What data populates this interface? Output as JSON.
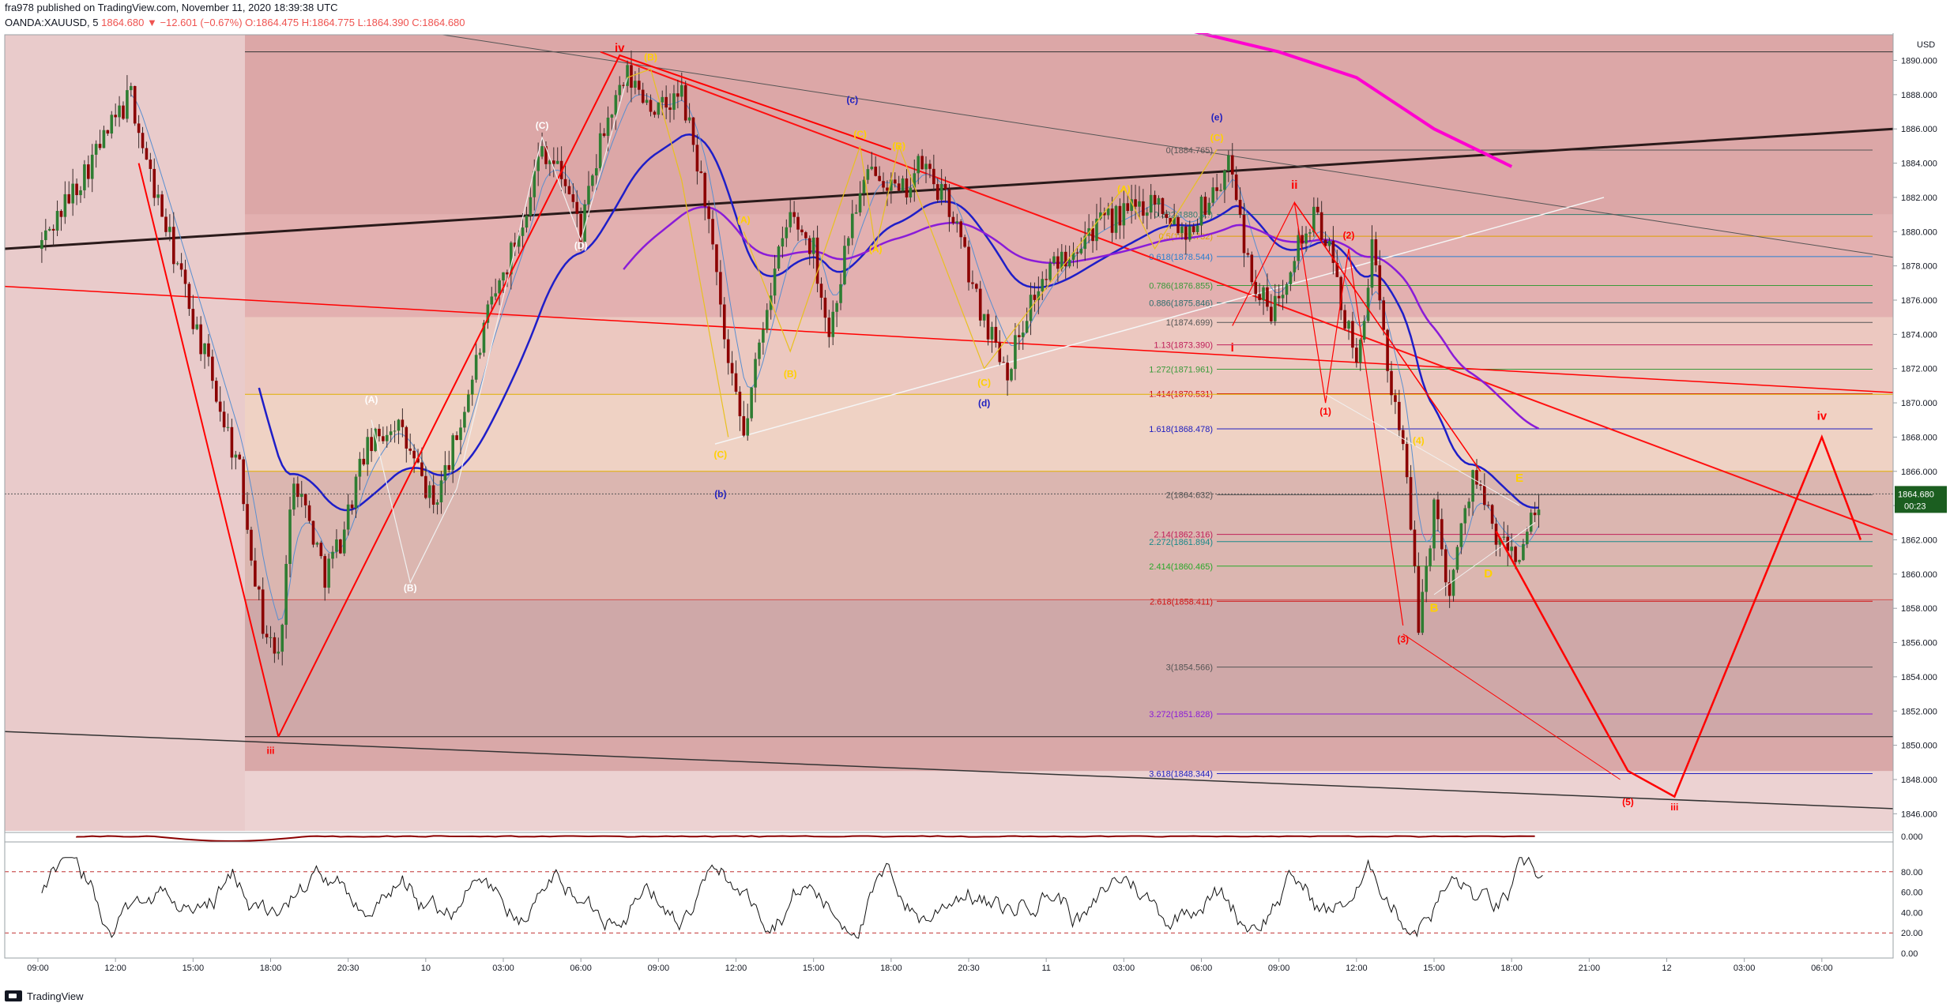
{
  "header": {
    "publish_line": "fra978 published on TradingView.com, November 11, 2020 18:39:38 UTC",
    "symbol_line": "OANDA:XAUUSD, 5",
    "last": "1864.680",
    "change": "▼ −12.601 (−0.67%)",
    "o": "O:1864.475",
    "h": "H:1864.775",
    "l": "L:1864.390",
    "c": "C:1864.680"
  },
  "footer": {
    "brand": "TradingView"
  },
  "colors": {
    "up_candle": "#2e7d32",
    "down_candle": "#8b0000",
    "bg_pink": "#e7c0c0",
    "wave_red": "#ff0000",
    "ma_blue": "#1e1ec8",
    "ma_purple": "#8a1cd8",
    "ma_magenta": "#ff00d0",
    "price_badge": "#1b5e20"
  },
  "chart_data": [
    {
      "type": "candlestick",
      "symbol": "OANDA:XAUUSD",
      "interval": "5",
      "currency": "USD",
      "last_price": "1864.680",
      "countdown": "00:23",
      "ylim": [
        1845,
        1891.5
      ],
      "y_ticks": [
        1846,
        1848,
        1850,
        1852,
        1854,
        1856,
        1858,
        1860,
        1862,
        1864,
        1866,
        1868,
        1870,
        1872,
        1874,
        1876,
        1878,
        1880,
        1882,
        1884,
        1886,
        1888,
        1890
      ],
      "y_tick_labels": [
        "1846.000",
        "1848.000",
        "1850.000",
        "1852.000",
        "1854.000",
        "1856.000",
        "1858.000",
        "1860.000",
        "1862.000",
        "1864.000",
        "1866.000",
        "1868.000",
        "1870.000",
        "1872.000",
        "1874.000",
        "1876.000",
        "1878.000",
        "1880.000",
        "1882.000",
        "1884.000",
        "1886.000",
        "1888.000",
        "1890.000"
      ],
      "x_tick_labels": [
        "09:00",
        "12:00",
        "15:00",
        "18:00",
        "20:30",
        "10",
        "03:00",
        "06:00",
        "09:00",
        "12:00",
        "15:00",
        "18:00",
        "20:30",
        "11",
        "03:00",
        "06:00",
        "09:00",
        "12:00",
        "15:00",
        "18:00",
        "21:00",
        "12",
        "03:00",
        "06:00"
      ],
      "price_path": [
        [
          0.0,
          1879
        ],
        [
          1.2,
          1888
        ],
        [
          1.4,
          1884
        ],
        [
          1.8,
          1878
        ],
        [
          2.2,
          1872
        ],
        [
          2.6,
          1866
        ],
        [
          2.9,
          1857
        ],
        [
          3.1,
          1855
        ],
        [
          3.3,
          1866
        ],
        [
          3.7,
          1860
        ],
        [
          3.9,
          1862
        ],
        [
          4.2,
          1867
        ],
        [
          4.6,
          1869
        ],
        [
          4.9,
          1866
        ],
        [
          5.1,
          1864
        ],
        [
          5.4,
          1868
        ],
        [
          5.8,
          1875
        ],
        [
          6.2,
          1880
        ],
        [
          6.5,
          1885
        ],
        [
          6.8,
          1883
        ],
        [
          7.0,
          1880
        ],
        [
          7.3,
          1886
        ],
        [
          7.6,
          1889
        ],
        [
          8.0,
          1887
        ],
        [
          8.3,
          1888
        ],
        [
          8.6,
          1882
        ],
        [
          8.9,
          1872
        ],
        [
          9.1,
          1868
        ],
        [
          9.4,
          1876
        ],
        [
          9.7,
          1881
        ],
        [
          10.0,
          1879
        ],
        [
          10.2,
          1874
        ],
        [
          10.5,
          1881
        ],
        [
          10.8,
          1884
        ],
        [
          11.1,
          1882
        ],
        [
          11.4,
          1884
        ],
        [
          11.8,
          1881
        ],
        [
          12.1,
          1876
        ],
        [
          12.5,
          1872
        ],
        [
          12.8,
          1876
        ],
        [
          13.1,
          1878
        ],
        [
          13.5,
          1880
        ],
        [
          14.0,
          1881
        ],
        [
          14.4,
          1882
        ],
        [
          14.8,
          1880
        ],
        [
          15.1,
          1882
        ],
        [
          15.4,
          1884
        ],
        [
          15.6,
          1878
        ],
        [
          15.9,
          1875
        ],
        [
          16.2,
          1879
        ],
        [
          16.5,
          1881
        ],
        [
          16.7,
          1878
        ],
        [
          17.0,
          1872
        ],
        [
          17.2,
          1879
        ],
        [
          17.4,
          1872
        ],
        [
          17.6,
          1868
        ],
        [
          17.8,
          1857
        ],
        [
          18.0,
          1864
        ],
        [
          18.2,
          1859
        ],
        [
          18.5,
          1866
        ],
        [
          18.8,
          1862
        ],
        [
          19.1,
          1861
        ],
        [
          19.4,
          1864.7
        ]
      ],
      "fib_levels": [
        {
          "label": "0(1884.765)",
          "value": 1884.765,
          "color": "#555555"
        },
        {
          "label": "0.382(1880.9..)",
          "value": 1881.0,
          "color": "#2e7d6e"
        },
        {
          "label": "0.5(1879.732)",
          "value": 1879.732,
          "color": "#e0a000"
        },
        {
          "label": "0.618(1878.544)",
          "value": 1878.544,
          "color": "#2a7fd0"
        },
        {
          "label": "0.786(1876.855)",
          "value": 1876.855,
          "color": "#3a9a3a"
        },
        {
          "label": "0.886(1875.846)",
          "value": 1875.846,
          "color": "#2e6e6e"
        },
        {
          "label": "1(1874.699)",
          "value": 1874.699,
          "color": "#555555"
        },
        {
          "label": "1.13(1873.390)",
          "value": 1873.39,
          "color": "#c0205a"
        },
        {
          "label": "1.272(1871.961)",
          "value": 1871.961,
          "color": "#3a9a3a"
        },
        {
          "label": "1.414(1870.531)",
          "value": 1870.531,
          "color": "#d01010"
        },
        {
          "label": "1.618(1868.478)",
          "value": 1868.478,
          "color": "#2020c0"
        },
        {
          "label": "2(1864.632)",
          "value": 1864.632,
          "color": "#555555"
        },
        {
          "label": "2.14(1862.316)",
          "value": 1862.316,
          "color": "#c0205a"
        },
        {
          "label": "2.272(1861.894)",
          "value": 1861.894,
          "color": "#1a8a8a"
        },
        {
          "label": "2.414(1860.465)",
          "value": 1860.465,
          "color": "#2aa82a"
        },
        {
          "label": "2.618(1858.411)",
          "value": 1858.411,
          "color": "#d01010"
        },
        {
          "label": "3(1854.566)",
          "value": 1854.566,
          "color": "#555555"
        },
        {
          "label": "3.272(1851.828)",
          "value": 1851.828,
          "color": "#8a1cd8"
        },
        {
          "label": "3.618(1848.344)",
          "value": 1848.344,
          "color": "#2020c0"
        }
      ],
      "annotations": [
        {
          "text": "iv",
          "x": 7.5,
          "y": 1890.5,
          "color": "#ff0000"
        },
        {
          "text": "iii",
          "x": 3.0,
          "y": 1849.5,
          "color": "#ff0000"
        },
        {
          "text": "(c)",
          "x": 10.5,
          "y": 1887.5,
          "color": "#2020c0"
        },
        {
          "text": "(e)",
          "x": 15.2,
          "y": 1886.5,
          "color": "#2020c0"
        },
        {
          "text": "(b)",
          "x": 8.8,
          "y": 1864.5,
          "color": "#2020c0"
        },
        {
          "text": "(d)",
          "x": 12.2,
          "y": 1869.8,
          "color": "#2020c0"
        },
        {
          "text": "(C)",
          "x": 6.5,
          "y": 1886.0,
          "color": "#ffffff"
        },
        {
          "text": "(D)",
          "x": 7.0,
          "y": 1879.0,
          "color": "#ffffff"
        },
        {
          "text": "(A)",
          "x": 4.3,
          "y": 1870.0,
          "color": "#ffffff"
        },
        {
          "text": "(B)",
          "x": 4.8,
          "y": 1859.0,
          "color": "#ffffff"
        },
        {
          "text": "(A)",
          "x": 9.1,
          "y": 1880.5,
          "color": "#ffd000"
        },
        {
          "text": "(B)",
          "x": 9.7,
          "y": 1871.5,
          "color": "#ffd000"
        },
        {
          "text": "(C)",
          "x": 10.6,
          "y": 1885.5,
          "color": "#ffd000"
        },
        {
          "text": "(B)",
          "x": 11.1,
          "y": 1884.8,
          "color": "#ffd000"
        },
        {
          "text": "(A)",
          "x": 10.8,
          "y": 1878.8,
          "color": "#ffd000"
        },
        {
          "text": "(C)",
          "x": 12.2,
          "y": 1871.0,
          "color": "#ffd000"
        },
        {
          "text": "(C)",
          "x": 8.8,
          "y": 1866.8,
          "color": "#ffd000"
        },
        {
          "text": "(B)",
          "x": 7.9,
          "y": 1890.0,
          "color": "#ffd000"
        },
        {
          "text": "(A)",
          "x": 14.0,
          "y": 1882.3,
          "color": "#ffd000"
        },
        {
          "text": "(C)",
          "x": 15.2,
          "y": 1885.3,
          "color": "#ffd000"
        },
        {
          "text": "ii",
          "x": 16.2,
          "y": 1882.5,
          "color": "#ff0000"
        },
        {
          "text": "i",
          "x": 15.4,
          "y": 1873.0,
          "color": "#ff0000"
        },
        {
          "text": "(2)",
          "x": 16.9,
          "y": 1879.6,
          "color": "#ff0000"
        },
        {
          "text": "(1)",
          "x": 16.6,
          "y": 1869.3,
          "color": "#ff0000"
        },
        {
          "text": "(3)",
          "x": 17.6,
          "y": 1856.0,
          "color": "#ff0000"
        },
        {
          "text": "(4)",
          "x": 17.8,
          "y": 1867.6,
          "color": "#ffd000"
        },
        {
          "text": "B",
          "x": 18.0,
          "y": 1857.8,
          "color": "#ffd000"
        },
        {
          "text": "D",
          "x": 18.7,
          "y": 1859.8,
          "color": "#ffd000"
        },
        {
          "text": "E",
          "x": 19.1,
          "y": 1865.4,
          "color": "#ffd000"
        },
        {
          "text": "(5)",
          "x": 20.5,
          "y": 1846.5,
          "color": "#ff0000"
        },
        {
          "text": "iii",
          "x": 21.1,
          "y": 1846.2,
          "color": "#ff0000"
        },
        {
          "text": "iv",
          "x": 23.0,
          "y": 1869.0,
          "color": "#ff0000"
        }
      ],
      "projection": [
        [
          18.8,
          1862.5
        ],
        [
          20.5,
          1848.5
        ],
        [
          21.1,
          1847.0
        ],
        [
          23.0,
          1868.0
        ],
        [
          23.5,
          1862.0
        ]
      ]
    },
    {
      "type": "line",
      "name": "oscillator",
      "ylim": [
        0,
        100
      ],
      "y_ticks": [
        0,
        20,
        40,
        60,
        80
      ],
      "y_tick_labels": [
        "0.00",
        "20.00",
        "40.00",
        "60.00",
        "80.00"
      ],
      "levels": [
        20,
        80
      ]
    }
  ]
}
